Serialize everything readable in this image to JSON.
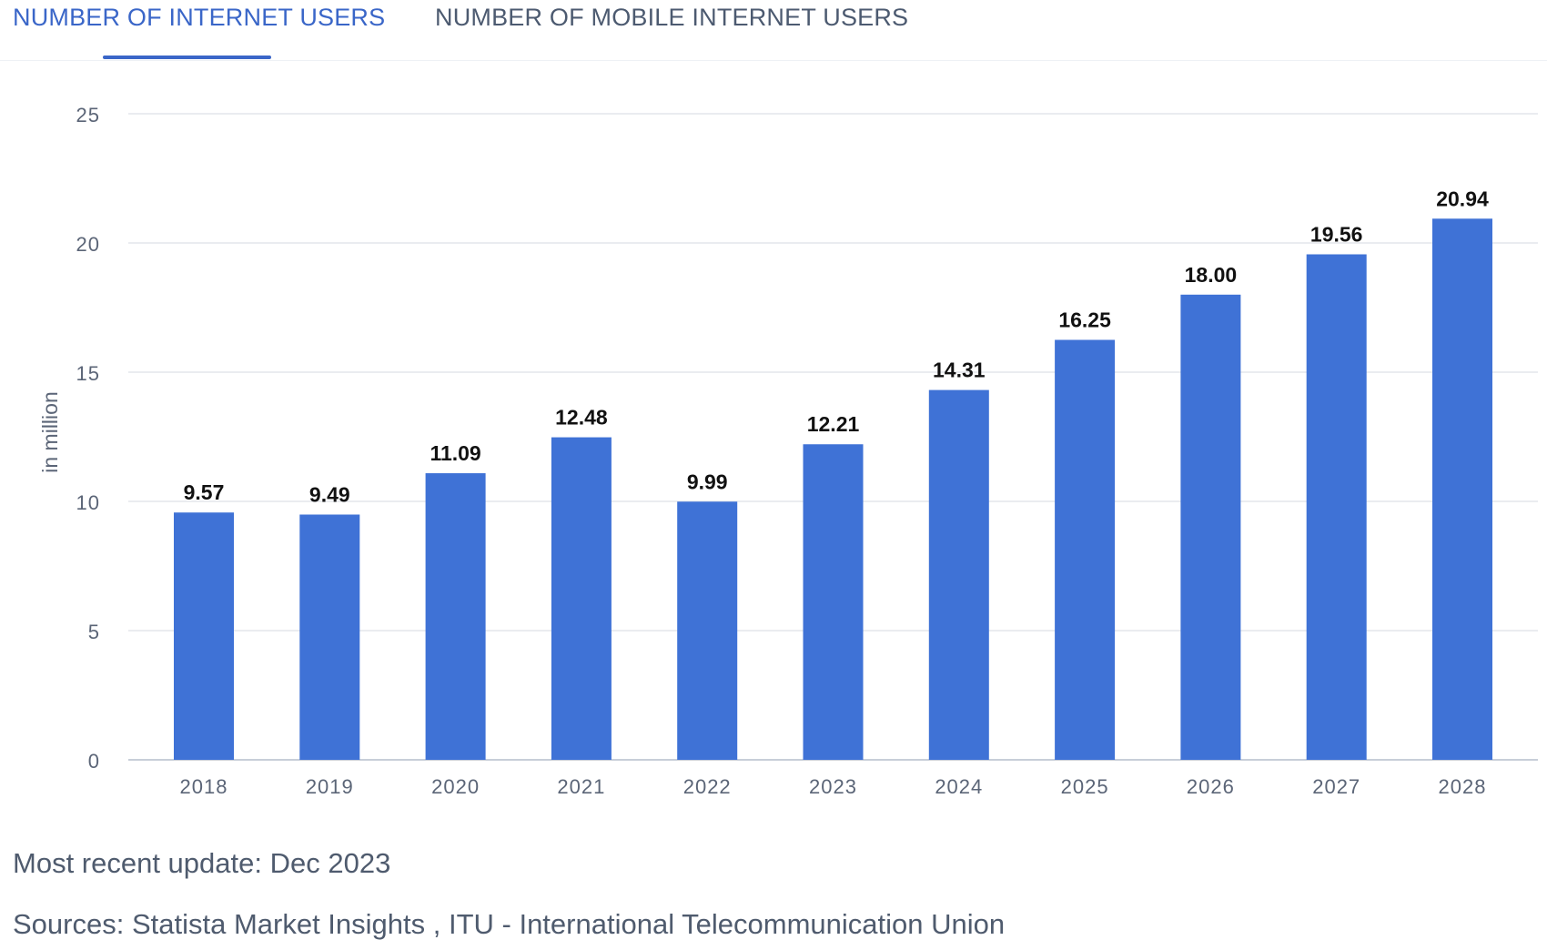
{
  "tabs": [
    {
      "label": "NUMBER OF INTERNET USERS",
      "active": true
    },
    {
      "label": "NUMBER OF MOBILE INTERNET USERS",
      "active": false
    }
  ],
  "colors": {
    "bar": "#3f72d6",
    "accent": "#3a66c8",
    "grid": "#e3e6eb",
    "axis_text": "#5b6577",
    "label_text": "#111111"
  },
  "chart_data": {
    "type": "bar",
    "title": "",
    "xlabel": "",
    "ylabel": "in million",
    "ylim": [
      0,
      25
    ],
    "yticks": [
      0,
      5,
      10,
      15,
      20,
      25
    ],
    "grid": true,
    "categories": [
      "2018",
      "2019",
      "2020",
      "2021",
      "2022",
      "2023",
      "2024",
      "2025",
      "2026",
      "2027",
      "2028"
    ],
    "values": [
      9.57,
      9.49,
      11.09,
      12.48,
      9.99,
      12.21,
      14.31,
      16.25,
      18.0,
      19.56,
      20.94
    ],
    "value_labels": [
      "9.57",
      "9.49",
      "11.09",
      "12.48",
      "9.99",
      "12.21",
      "14.31",
      "16.25",
      "18.00",
      "19.56",
      "20.94"
    ]
  },
  "footer": {
    "update": "Most recent update: Dec 2023",
    "sources": "Sources: Statista Market Insights , ITU - International Telecommunication Union"
  }
}
